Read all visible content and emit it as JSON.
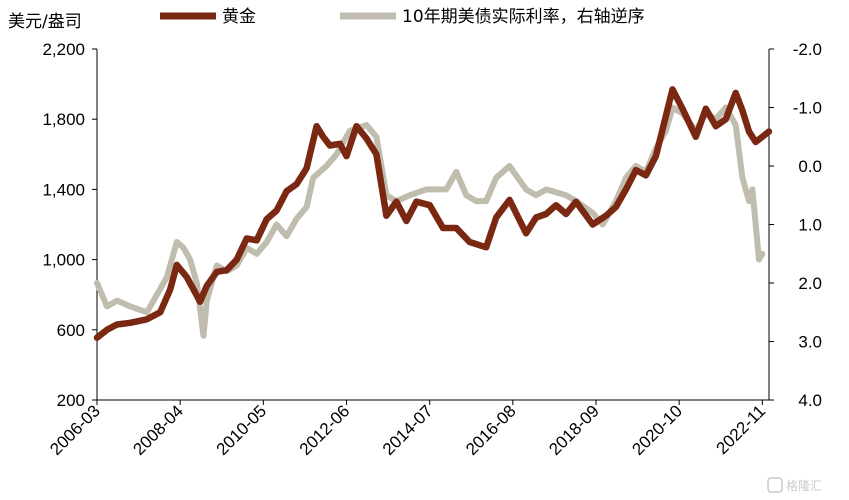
{
  "chart_data": {
    "type": "line",
    "left_unit_label": "美元/盎司",
    "legend": [
      {
        "label": "黄金",
        "color": "#7a2812"
      },
      {
        "label": "10年期美债实际利率，右轴逆序",
        "color": "#c0bcae"
      }
    ],
    "x_ticks": [
      "2006-03",
      "2008-04",
      "2010-05",
      "2012-06",
      "2014-07",
      "2016-08",
      "2018-09",
      "2020-10",
      "2022-11"
    ],
    "y_left": {
      "ticks": [
        "2,200",
        "1,800",
        "1,400",
        "1,000",
        "600",
        "200"
      ],
      "min": 200,
      "max": 2200
    },
    "y_right": {
      "ticks": [
        "-2.0",
        "-1.0",
        "0.0",
        "1.0",
        "2.0",
        "3.0",
        "4.0"
      ],
      "min": -2.0,
      "max": 4.0,
      "inverted": true
    },
    "x_range": [
      "2006-03",
      "2023-01"
    ],
    "series": [
      {
        "name": "黄金",
        "axis": "left",
        "color": "#7a2812",
        "points": [
          [
            "2006-03",
            555
          ],
          [
            "2006-06",
            600
          ],
          [
            "2006-09",
            630
          ],
          [
            "2007-01",
            640
          ],
          [
            "2007-06",
            660
          ],
          [
            "2007-10",
            700
          ],
          [
            "2008-01",
            830
          ],
          [
            "2008-03",
            970
          ],
          [
            "2008-06",
            900
          ],
          [
            "2008-10",
            760
          ],
          [
            "2008-12",
            850
          ],
          [
            "2009-03",
            930
          ],
          [
            "2009-06",
            940
          ],
          [
            "2009-09",
            1000
          ],
          [
            "2009-12",
            1120
          ],
          [
            "2010-03",
            1110
          ],
          [
            "2010-06",
            1230
          ],
          [
            "2010-09",
            1280
          ],
          [
            "2010-12",
            1390
          ],
          [
            "2011-03",
            1430
          ],
          [
            "2011-06",
            1520
          ],
          [
            "2011-09",
            1760
          ],
          [
            "2011-11",
            1700
          ],
          [
            "2012-01",
            1650
          ],
          [
            "2012-04",
            1660
          ],
          [
            "2012-06",
            1590
          ],
          [
            "2012-09",
            1760
          ],
          [
            "2012-12",
            1690
          ],
          [
            "2013-03",
            1600
          ],
          [
            "2013-06",
            1250
          ],
          [
            "2013-09",
            1330
          ],
          [
            "2013-12",
            1220
          ],
          [
            "2014-03",
            1330
          ],
          [
            "2014-07",
            1310
          ],
          [
            "2014-11",
            1180
          ],
          [
            "2015-03",
            1180
          ],
          [
            "2015-07",
            1100
          ],
          [
            "2015-12",
            1070
          ],
          [
            "2016-03",
            1240
          ],
          [
            "2016-07",
            1340
          ],
          [
            "2016-12",
            1150
          ],
          [
            "2017-03",
            1240
          ],
          [
            "2017-06",
            1260
          ],
          [
            "2017-09",
            1310
          ],
          [
            "2017-12",
            1260
          ],
          [
            "2018-03",
            1330
          ],
          [
            "2018-08",
            1200
          ],
          [
            "2018-12",
            1250
          ],
          [
            "2019-03",
            1300
          ],
          [
            "2019-06",
            1400
          ],
          [
            "2019-09",
            1510
          ],
          [
            "2019-12",
            1480
          ],
          [
            "2020-03",
            1590
          ],
          [
            "2020-08",
            1970
          ],
          [
            "2020-11",
            1860
          ],
          [
            "2021-03",
            1700
          ],
          [
            "2021-06",
            1860
          ],
          [
            "2021-09",
            1760
          ],
          [
            "2021-12",
            1800
          ],
          [
            "2022-03",
            1950
          ],
          [
            "2022-05",
            1850
          ],
          [
            "2022-07",
            1730
          ],
          [
            "2022-09",
            1670
          ],
          [
            "2022-11",
            1700
          ],
          [
            "2023-01",
            1730
          ]
        ]
      },
      {
        "name": "10年期美债实际利率，右轴逆序",
        "axis": "right",
        "color": "#c0bcae",
        "points": [
          [
            "2006-03",
            2.0
          ],
          [
            "2006-06",
            2.4
          ],
          [
            "2006-09",
            2.3
          ],
          [
            "2007-01",
            2.4
          ],
          [
            "2007-06",
            2.5
          ],
          [
            "2007-09",
            2.2
          ],
          [
            "2007-12",
            1.9
          ],
          [
            "2008-03",
            1.3
          ],
          [
            "2008-05",
            1.4
          ],
          [
            "2008-07",
            1.6
          ],
          [
            "2008-09",
            2.0
          ],
          [
            "2008-11",
            2.9
          ],
          [
            "2008-12",
            2.3
          ],
          [
            "2009-03",
            1.7
          ],
          [
            "2009-06",
            1.8
          ],
          [
            "2009-09",
            1.7
          ],
          [
            "2009-12",
            1.4
          ],
          [
            "2010-03",
            1.5
          ],
          [
            "2010-06",
            1.3
          ],
          [
            "2010-09",
            1.0
          ],
          [
            "2010-12",
            1.2
          ],
          [
            "2011-03",
            0.9
          ],
          [
            "2011-06",
            0.7
          ],
          [
            "2011-08",
            0.2
          ],
          [
            "2011-12",
            0.0
          ],
          [
            "2012-03",
            -0.2
          ],
          [
            "2012-07",
            -0.6
          ],
          [
            "2012-12",
            -0.7
          ],
          [
            "2013-03",
            -0.5
          ],
          [
            "2013-06",
            0.5
          ],
          [
            "2013-09",
            0.6
          ],
          [
            "2014-01",
            0.5
          ],
          [
            "2014-06",
            0.4
          ],
          [
            "2014-12",
            0.4
          ],
          [
            "2015-03",
            0.1
          ],
          [
            "2015-06",
            0.5
          ],
          [
            "2015-09",
            0.6
          ],
          [
            "2015-12",
            0.6
          ],
          [
            "2016-03",
            0.2
          ],
          [
            "2016-07",
            0.0
          ],
          [
            "2016-12",
            0.4
          ],
          [
            "2017-03",
            0.5
          ],
          [
            "2017-06",
            0.4
          ],
          [
            "2017-12",
            0.5
          ],
          [
            "2018-03",
            0.6
          ],
          [
            "2018-08",
            0.8
          ],
          [
            "2018-11",
            1.0
          ],
          [
            "2019-03",
            0.6
          ],
          [
            "2019-06",
            0.2
          ],
          [
            "2019-09",
            0.0
          ],
          [
            "2019-12",
            0.1
          ],
          [
            "2020-03",
            -0.3
          ],
          [
            "2020-06",
            -0.6
          ],
          [
            "2020-08",
            -1.0
          ],
          [
            "2020-11",
            -0.9
          ],
          [
            "2021-03",
            -0.6
          ],
          [
            "2021-06",
            -0.9
          ],
          [
            "2021-09",
            -0.8
          ],
          [
            "2021-12",
            -1.0
          ],
          [
            "2022-03",
            -0.7
          ],
          [
            "2022-05",
            0.2
          ],
          [
            "2022-07",
            0.6
          ],
          [
            "2022-08",
            0.4
          ],
          [
            "2022-10",
            1.6
          ],
          [
            "2022-11",
            1.5
          ]
        ]
      }
    ]
  },
  "watermark": {
    "text": "格隆汇"
  }
}
